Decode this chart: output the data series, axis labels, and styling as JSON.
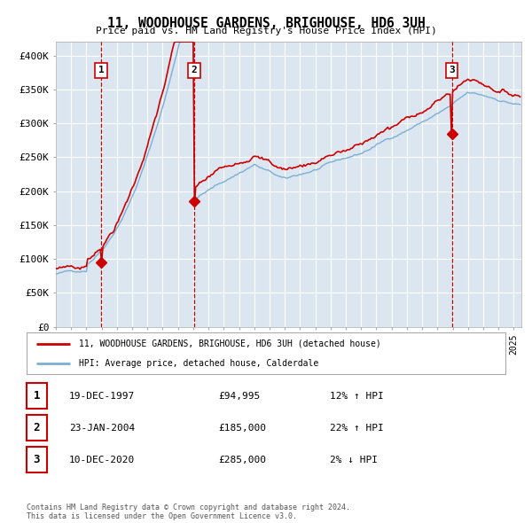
{
  "title": "11, WOODHOUSE GARDENS, BRIGHOUSE, HD6 3UH",
  "subtitle": "Price paid vs. HM Land Registry's House Price Index (HPI)",
  "background_color": "#ffffff",
  "plot_bg_color": "#dce6f0",
  "grid_color": "#ffffff",
  "hpi_line_color": "#7bafd4",
  "price_line_color": "#cc0000",
  "sale_marker_color": "#cc0000",
  "vline_color": "#cc0000",
  "vline_x": [
    1997.97,
    2004.06,
    2020.94
  ],
  "sale_labels": [
    "1",
    "2",
    "3"
  ],
  "sale_dates": [
    "19-DEC-1997",
    "23-JAN-2004",
    "10-DEC-2020"
  ],
  "sale_prices": [
    "£94,995",
    "£185,000",
    "£285,000"
  ],
  "sale_hpi": [
    "12% ↑ HPI",
    "22% ↑ HPI",
    "2% ↓ HPI"
  ],
  "ylim": [
    0,
    420000
  ],
  "yticks": [
    0,
    50000,
    100000,
    150000,
    200000,
    250000,
    300000,
    350000,
    400000
  ],
  "xlim": [
    1995.0,
    2025.5
  ],
  "legend_line1": "11, WOODHOUSE GARDENS, BRIGHOUSE, HD6 3UH (detached house)",
  "legend_line2": "HPI: Average price, detached house, Calderdale",
  "footer": "Contains HM Land Registry data © Crown copyright and database right 2024.\nThis data is licensed under the Open Government Licence v3.0.",
  "sale_points": [
    {
      "year": 1997.97,
      "price": 94995
    },
    {
      "year": 2004.06,
      "price": 185000
    },
    {
      "year": 2020.94,
      "price": 285000
    }
  ]
}
